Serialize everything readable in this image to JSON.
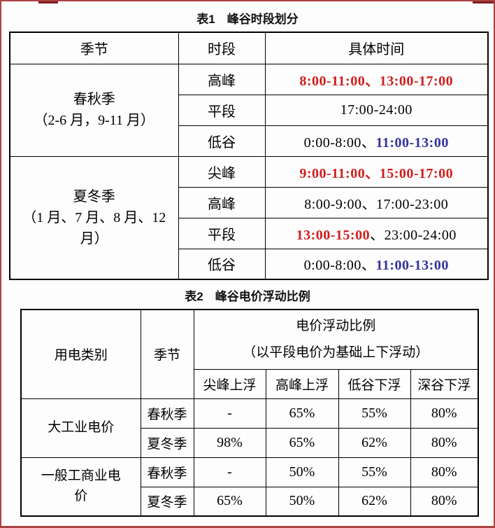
{
  "colors": {
    "red_text": "#d01e1e",
    "blue_text": "#32329e",
    "page_border": "#ab4343",
    "table_border": "#000000"
  },
  "table1": {
    "title": "表1　峰谷时段划分",
    "col_headers": [
      "季节",
      "时段",
      "具体时间"
    ],
    "season_groups": [
      {
        "label": "春秋季\n（2-6 月，9-11 月）"
      },
      {
        "label": "夏冬季\n（1 月、7 月、8 月、12\n月）"
      }
    ],
    "rows": [
      {
        "period": "高峰",
        "time": [
          {
            "text": "8:00-11:00、13:00-17:00",
            "style": "red"
          }
        ]
      },
      {
        "period": "平段",
        "time": [
          {
            "text": "17:00-24:00",
            "style": "black"
          }
        ]
      },
      {
        "period": "低谷",
        "time": [
          {
            "text": "0:00-8:00、",
            "style": "black"
          },
          {
            "text": "11:00-13:00",
            "style": "blue"
          }
        ]
      },
      {
        "period": "尖峰",
        "time": [
          {
            "text": "9:00-11:00、15:00-17:00",
            "style": "red"
          }
        ]
      },
      {
        "period": "高峰",
        "time": [
          {
            "text": "8:00-9:00、17:00-23:00",
            "style": "black"
          }
        ]
      },
      {
        "period": "平段",
        "time": [
          {
            "text": "13:00-15:00",
            "style": "red"
          },
          {
            "text": "、23:00-24:00",
            "style": "black"
          }
        ]
      },
      {
        "period": "低谷",
        "time": [
          {
            "text": "0:00-8:00、",
            "style": "black"
          },
          {
            "text": "11:00-13:00",
            "style": "blue"
          }
        ]
      }
    ]
  },
  "table2": {
    "title": "表2　峰谷电价浮动比例",
    "header": {
      "category": "用电类别",
      "season": "季节",
      "ratio_title": "电价浮动比例",
      "ratio_subtitle": "（以平段电价为基础上下浮动）",
      "sub_columns": [
        "尖峰上浮",
        "高峰上浮",
        "低谷下浮",
        "深谷下浮"
      ]
    },
    "groups": [
      {
        "category": "大工业电价",
        "rows": [
          {
            "season": "春秋季",
            "values": [
              "-",
              "65%",
              "55%",
              "80%"
            ]
          },
          {
            "season": "夏冬季",
            "values": [
              "98%",
              "65%",
              "62%",
              "80%"
            ]
          }
        ]
      },
      {
        "category": "一般工商业电\n价",
        "rows": [
          {
            "season": "春秋季",
            "values": [
              "-",
              "50%",
              "55%",
              "80%"
            ]
          },
          {
            "season": "夏冬季",
            "values": [
              "65%",
              "50%",
              "62%",
              "80%"
            ]
          }
        ]
      }
    ]
  }
}
